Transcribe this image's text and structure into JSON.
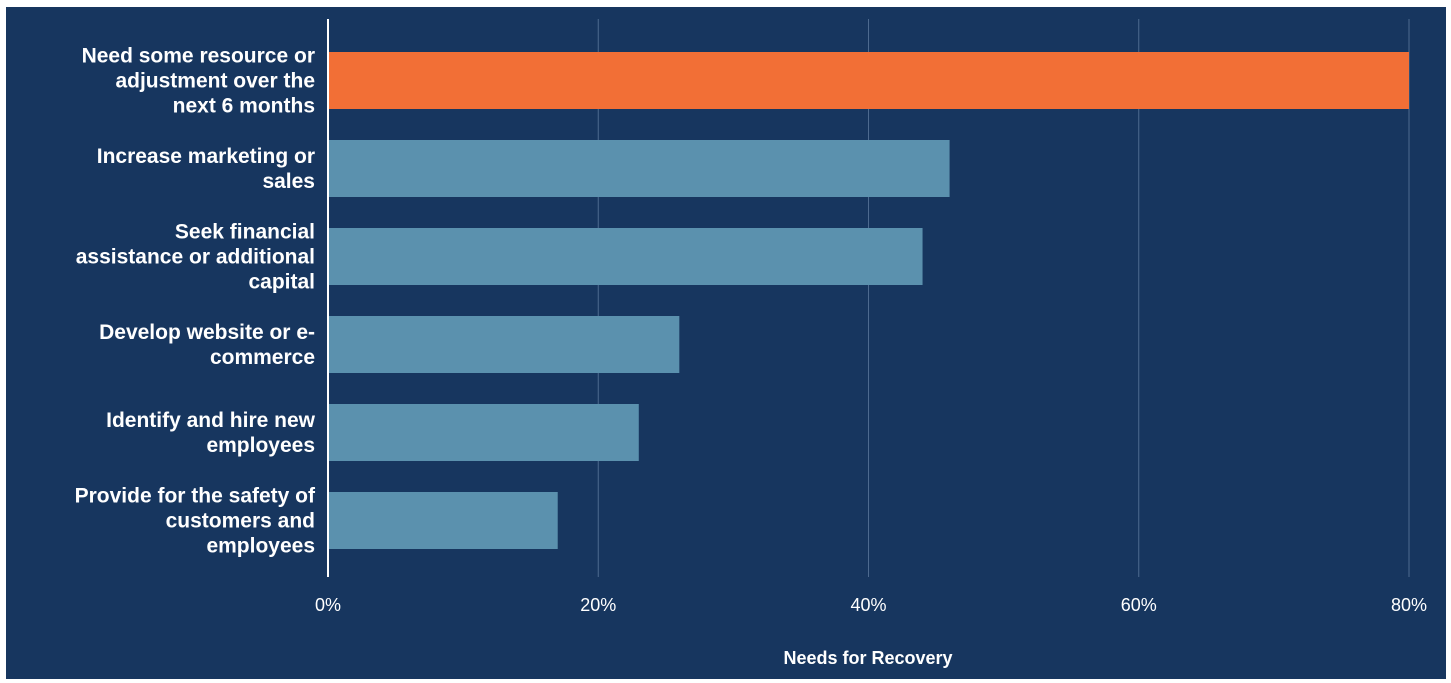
{
  "chart_data": {
    "type": "bar",
    "orientation": "horizontal",
    "title": "",
    "xlabel": "Needs for Recovery",
    "ylabel": "",
    "xlim": [
      0,
      80
    ],
    "ticks": [
      0,
      20,
      40,
      60,
      80
    ],
    "tick_labels": [
      "0%",
      "20%",
      "40%",
      "60%",
      "80%"
    ],
    "grid": true,
    "legend": "none",
    "categories": [
      [
        "Need some resource or",
        "adjustment over the",
        "next 6 months"
      ],
      [
        "Increase marketing or",
        "sales"
      ],
      [
        "Seek financial",
        "assistance or additional",
        "capital"
      ],
      [
        "Develop website or e-",
        "commerce"
      ],
      [
        "Identify and hire new",
        "employees"
      ],
      [
        "Provide for the safety of",
        "customers and",
        "employees"
      ]
    ],
    "values": [
      80,
      46,
      44,
      26,
      23,
      17
    ],
    "colors": [
      "#f26f36",
      "#5b91ae",
      "#5b91ae",
      "#5b91ae",
      "#5b91ae",
      "#5b91ae"
    ],
    "background": "#17365f",
    "grid_color": "#4d6a8f",
    "axis_color": "#ffffff"
  }
}
